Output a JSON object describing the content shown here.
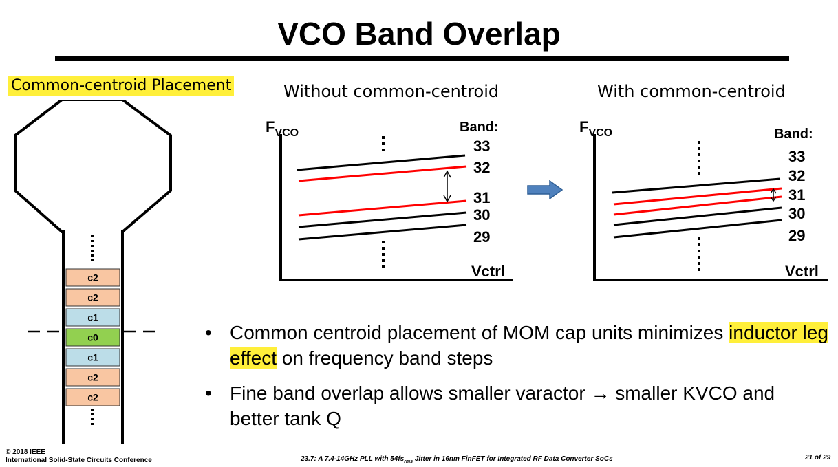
{
  "slide": {
    "title": "VCO Band Overlap",
    "placement_label": "Common-centroid Placement",
    "left_plot_title": "Without common-centroid",
    "right_plot_title": "With common-centroid"
  },
  "cap_units": {
    "labels": [
      "c2",
      "c2",
      "c1",
      "c0",
      "c1",
      "c2",
      "c2"
    ],
    "colors": {
      "c2": "#f9c6a2",
      "c1": "#bcdde8",
      "c0": "#92d050"
    }
  },
  "plots": {
    "y_label_main": "F",
    "y_label_sub": "VCO",
    "x_label": "Vctrl",
    "band_header": "Band:",
    "bands": [
      "33",
      "32",
      "31",
      "30",
      "29"
    ],
    "line_colors": {
      "black": "#000000",
      "red": "#ff0000"
    }
  },
  "arrow_color": "#4f81bd",
  "bullets": [
    {
      "before": "Common centroid placement of MOM cap units minimizes ",
      "highlight": "inductor leg effect",
      "after": " on frequency band steps"
    },
    {
      "text": "Fine band overlap allows smaller varactor → smaller KVCO and better tank Q"
    }
  ],
  "bullet_marker": "•",
  "footer": {
    "copyright": "© 2018 IEEE",
    "conference": "International Solid-State Circuits Conference",
    "paper_prefix": "23.7: A 7.4-14GHz PLL with 54fs",
    "paper_sub": "rms",
    "paper_suffix": " Jitter in 16nm FinFET for Integrated RF Data Converter SoCs",
    "page": "21 of 29"
  }
}
